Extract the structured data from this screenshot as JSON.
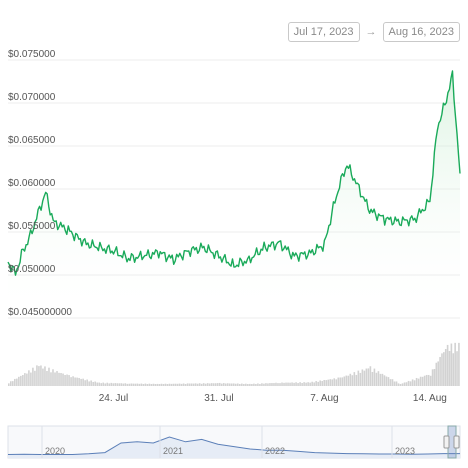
{
  "date_range": {
    "start": "Jul 17, 2023",
    "end": "Aug 16, 2023",
    "arrow": "→"
  },
  "colors": {
    "line": "#1aaa5a",
    "fill_top": "#bfe9c9",
    "volume": "#d2d2d2",
    "navigator_line": "#5b7fb8",
    "grid": "#ececec"
  },
  "chart_data": {
    "type": "line",
    "title": "",
    "xlabel": "",
    "ylabel": "",
    "x_ticks": [
      "24. Jul",
      "31. Jul",
      "7. Aug",
      "14. Aug"
    ],
    "y_ticks": [
      "$0.045000000",
      "$0.050000",
      "$0.055000",
      "$0.060000",
      "$0.065000",
      "$0.070000",
      "$0.075000"
    ],
    "ylim": [
      0.045,
      0.075
    ],
    "xlim": [
      "2023-07-17",
      "2023-08-16"
    ],
    "series": [
      {
        "values_x": [
          "2023-07-17",
          "2023-07-17T12:00",
          "2023-07-18",
          "2023-07-18T12:00",
          "2023-07-19",
          "2023-07-19T12:00",
          "2023-07-20",
          "2023-07-21",
          "2023-07-22",
          "2023-07-23",
          "2023-07-24",
          "2023-07-25",
          "2023-07-26",
          "2023-07-27",
          "2023-07-28",
          "2023-07-29",
          "2023-07-30",
          "2023-07-31",
          "2023-08-01",
          "2023-08-02",
          "2023-08-03",
          "2023-08-04",
          "2023-08-05",
          "2023-08-06",
          "2023-08-07",
          "2023-08-07T12:00",
          "2023-08-08",
          "2023-08-08T12:00",
          "2023-08-09",
          "2023-08-10",
          "2023-08-11",
          "2023-08-12",
          "2023-08-13",
          "2023-08-14",
          "2023-08-14T12:00",
          "2023-08-15",
          "2023-08-15T12:00",
          "2023-08-16"
        ],
        "values_y": [
          0.0515,
          0.0502,
          0.0528,
          0.0546,
          0.0572,
          0.0596,
          0.0562,
          0.0552,
          0.0538,
          0.0532,
          0.0528,
          0.0519,
          0.0522,
          0.0526,
          0.0518,
          0.0528,
          0.0532,
          0.0522,
          0.0511,
          0.0518,
          0.0532,
          0.0537,
          0.0522,
          0.0525,
          0.0535,
          0.0572,
          0.0605,
          0.0628,
          0.0611,
          0.0575,
          0.0565,
          0.0562,
          0.0565,
          0.0586,
          0.0672,
          0.0698,
          0.0732,
          0.0618
        ]
      }
    ],
    "volume": {
      "values_x": [
        "2023-07-17",
        "2023-07-19",
        "2023-07-21",
        "2023-07-23",
        "2023-07-25",
        "2023-07-27",
        "2023-07-29",
        "2023-07-31",
        "2023-08-02",
        "2023-08-04",
        "2023-08-06",
        "2023-08-08",
        "2023-08-10",
        "2023-08-12",
        "2023-08-14",
        "2023-08-15",
        "2023-08-16"
      ],
      "values": [
        0.08,
        0.5,
        0.25,
        0.08,
        0.06,
        0.05,
        0.06,
        0.07,
        0.05,
        0.08,
        0.09,
        0.2,
        0.45,
        0.05,
        0.3,
        0.95,
        1.0
      ]
    },
    "navigator": {
      "x_ticks": [
        "2020",
        "2021",
        "2022",
        "2023"
      ],
      "values": [
        0.02,
        0.03,
        0.02,
        0.02,
        0.02,
        0.05,
        0.1,
        0.5,
        0.55,
        0.5,
        0.75,
        0.55,
        0.65,
        0.45,
        0.35,
        0.25,
        0.2,
        0.2,
        0.15,
        0.1,
        0.08,
        0.06,
        0.05,
        0.04,
        0.04,
        0.03,
        0.04,
        0.06,
        0.06
      ]
    }
  }
}
